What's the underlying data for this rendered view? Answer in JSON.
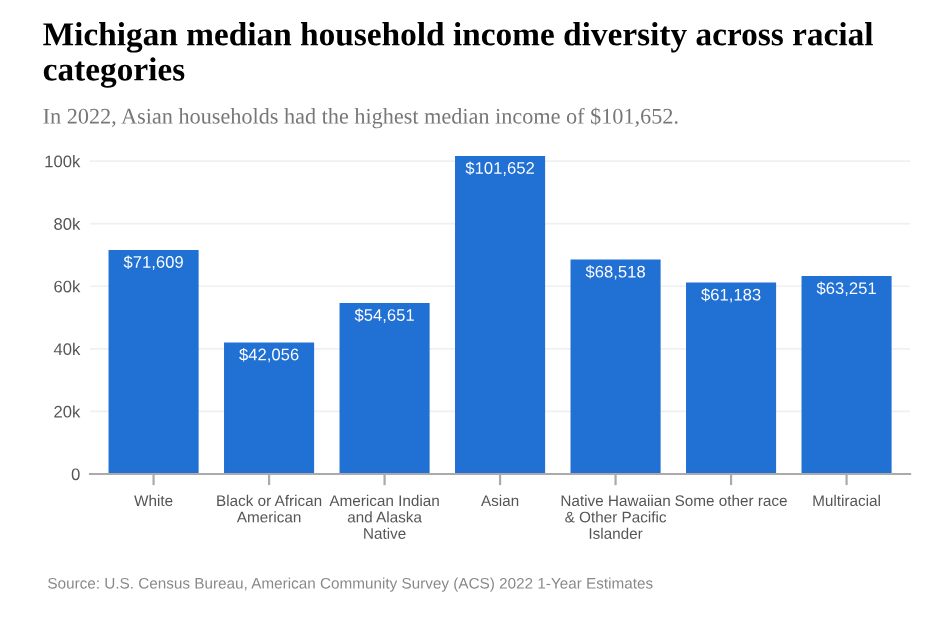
{
  "chart_data": {
    "type": "bar",
    "title": "Michigan median household income diversity across racial categories",
    "subtitle": "In 2022, Asian households had the highest median income of $101,652.",
    "categories": [
      "White",
      "Black or African American",
      "American Indian and Alaska Native",
      "Asian",
      "Native Hawaiian & Other Pacific Islander",
      "Some other race",
      "Multiracial"
    ],
    "values": [
      71609,
      42056,
      54651,
      101652,
      68518,
      61183,
      63251
    ],
    "value_labels": [
      "$71,609",
      "$42,056",
      "$54,651",
      "$101,652",
      "$68,518",
      "$61,183",
      "$63,251"
    ],
    "color": "#2170d4",
    "ylim": [
      0,
      102000
    ],
    "yticks": [
      0,
      {
        "value": 20000,
        "label": "20k"
      },
      {
        "value": 40000,
        "label": "40k"
      },
      {
        "value": 60000,
        "label": "60k"
      },
      {
        "value": 80000,
        "label": "80k"
      },
      {
        "value": 100000,
        "label": "100k"
      }
    ],
    "grid": "y",
    "annotations": [
      "Source: U.S. Census Bureau, American Community Survey (ACS) 2022 1-Year Estimates"
    ]
  }
}
